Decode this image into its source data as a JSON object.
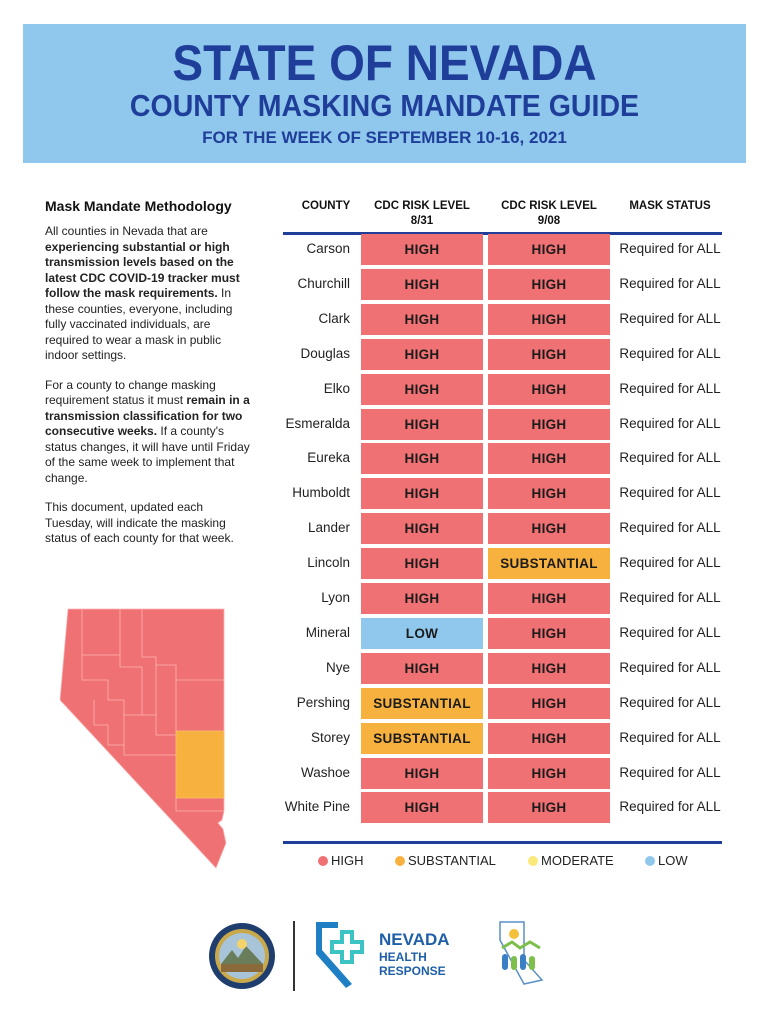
{
  "header": {
    "title": "STATE OF NEVADA",
    "subtitle": "COUNTY MASKING MANDATE GUIDE",
    "week": "FOR THE WEEK OF SEPTEMBER 10-16, 2021"
  },
  "methodology": {
    "heading": "Mask Mandate Methodology",
    "p1_a": "All counties in Nevada that are ",
    "p1_bold": "experiencing substantial or high transmission levels based on the latest CDC COVID-19 tracker must follow the mask requirements.",
    "p1_b": " In these counties, everyone, including fully vaccinated individuals, are required to wear a mask in public indoor settings.",
    "p2_a": "For a county to change masking requirement status it must ",
    "p2_bold": "remain in a transmission classification for two consecutive weeks.",
    "p2_b": " If a county's status changes, it will have until Friday of the same week to implement that change.",
    "p3": "This document, updated each Tuesday, will indicate the masking status of each county for that week."
  },
  "table": {
    "headers": {
      "county": "COUNTY",
      "risk1": "CDC RISK LEVEL",
      "risk1_date": "8/31",
      "risk2": "CDC RISK LEVEL",
      "risk2_date": "9/08",
      "status": "MASK STATUS"
    },
    "rows": [
      {
        "county": "Carson",
        "r1": "HIGH",
        "r2": "HIGH",
        "status": "Required for ALL"
      },
      {
        "county": "Churchill",
        "r1": "HIGH",
        "r2": "HIGH",
        "status": "Required for ALL"
      },
      {
        "county": "Clark",
        "r1": "HIGH",
        "r2": "HIGH",
        "status": "Required for ALL"
      },
      {
        "county": "Douglas",
        "r1": "HIGH",
        "r2": "HIGH",
        "status": "Required for ALL"
      },
      {
        "county": "Elko",
        "r1": "HIGH",
        "r2": "HIGH",
        "status": "Required for ALL"
      },
      {
        "county": "Esmeralda",
        "r1": "HIGH",
        "r2": "HIGH",
        "status": "Required for ALL"
      },
      {
        "county": "Eureka",
        "r1": "HIGH",
        "r2": "HIGH",
        "status": "Required for ALL"
      },
      {
        "county": "Humboldt",
        "r1": "HIGH",
        "r2": "HIGH",
        "status": "Required for ALL"
      },
      {
        "county": "Lander",
        "r1": "HIGH",
        "r2": "HIGH",
        "status": "Required for ALL"
      },
      {
        "county": "Lincoln",
        "r1": "HIGH",
        "r2": "SUBSTANTIAL",
        "status": "Required for ALL"
      },
      {
        "county": "Lyon",
        "r1": "HIGH",
        "r2": "HIGH",
        "status": "Required for ALL"
      },
      {
        "county": "Mineral",
        "r1": "LOW",
        "r2": "HIGH",
        "status": "Required for ALL"
      },
      {
        "county": "Nye",
        "r1": "HIGH",
        "r2": "HIGH",
        "status": "Required for ALL"
      },
      {
        "county": "Pershing",
        "r1": "SUBSTANTIAL",
        "r2": "HIGH",
        "status": "Required for ALL"
      },
      {
        "county": "Storey",
        "r1": "SUBSTANTIAL",
        "r2": "HIGH",
        "status": "Required for ALL"
      },
      {
        "county": "Washoe",
        "r1": "HIGH",
        "r2": "HIGH",
        "status": "Required for ALL"
      },
      {
        "county": "White Pine",
        "r1": "HIGH",
        "r2": "HIGH",
        "status": "Required for ALL"
      }
    ]
  },
  "legend": {
    "high": "HIGH",
    "substantial": "SUBSTANTIAL",
    "moderate": "MODERATE",
    "low": "LOW"
  },
  "colors": {
    "HIGH": "#f07173",
    "SUBSTANTIAL": "#f7b13f",
    "MODERATE": "#fbe87a",
    "LOW": "#8fc8ec",
    "title_blue": "#1f3e9a",
    "banner_bg": "#8fc8ec"
  },
  "footer": {
    "logo_line1": "NEVADA",
    "logo_line2": "HEALTH",
    "logo_line3": "RESPONSE",
    "icons": [
      "nevada-state-seal-icon",
      "nevada-health-response-logo-icon",
      "dhhs-logo-icon"
    ]
  }
}
